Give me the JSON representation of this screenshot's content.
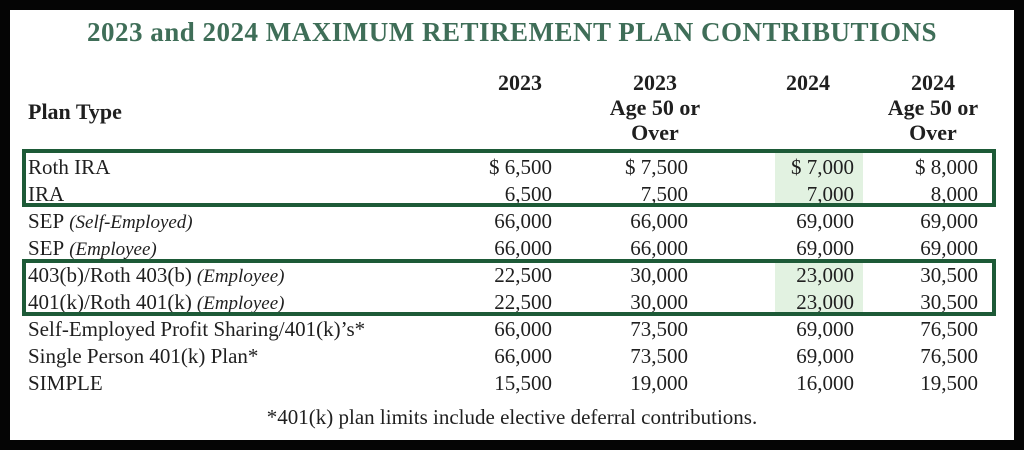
{
  "title": "2023 and 2024 MAXIMUM RETIREMENT PLAN CONTRIBUTIONS",
  "table": {
    "row_header": "Plan Type",
    "columns": [
      [
        "2023"
      ],
      [
        "2023",
        "Age 50 or",
        "Over"
      ],
      [
        "2024"
      ],
      [
        "2024",
        "Age 50 or",
        "Over"
      ]
    ],
    "rows": [
      {
        "plan": "Roth IRA",
        "note": "",
        "values": [
          "$ 6,500",
          "$ 7,500",
          "$ 7,000",
          "$ 8,000"
        ]
      },
      {
        "plan": "IRA",
        "note": "",
        "values": [
          "6,500",
          "7,500",
          "7,000",
          "8,000"
        ]
      },
      {
        "plan": "SEP",
        "note": "(Self-Employed)",
        "values": [
          "66,000",
          "66,000",
          "69,000",
          "69,000"
        ]
      },
      {
        "plan": "SEP",
        "note": "(Employee)",
        "values": [
          "66,000",
          "66,000",
          "69,000",
          "69,000"
        ]
      },
      {
        "plan": "403(b)/Roth 403(b)",
        "note": "(Employee)",
        "values": [
          "22,500",
          "30,000",
          "23,000",
          "30,500"
        ]
      },
      {
        "plan": "401(k)/Roth 401(k)",
        "note": "(Employee)",
        "values": [
          "22,500",
          "30,000",
          "23,000",
          "30,500"
        ]
      },
      {
        "plan": "Self-Employed Profit Sharing/401(k)’s*",
        "note": "",
        "values": [
          "66,000",
          "73,500",
          "69,000",
          "76,500"
        ]
      },
      {
        "plan": "Single Person 401(k) Plan*",
        "note": "",
        "values": [
          "66,000",
          "73,500",
          "69,000",
          "76,500"
        ]
      },
      {
        "plan": "SIMPLE",
        "note": "",
        "values": [
          "15,500",
          "19,000",
          "16,000",
          "19,500"
        ]
      }
    ],
    "highlighted_column": "2024",
    "highlighted_plans": [
      "Roth IRA",
      "IRA",
      "403(b)/Roth 403(b)",
      "401(k)/Roth 401(k)"
    ]
  },
  "footnote": "*401(k) plan limits include elective deferral contributions.",
  "colors": {
    "title_green": "#3f6e58",
    "group_box_border_green": "#1d5a37",
    "highlight_green": "#e2f2e1",
    "frame_black": "#050505",
    "text": "#1f1f1f"
  }
}
